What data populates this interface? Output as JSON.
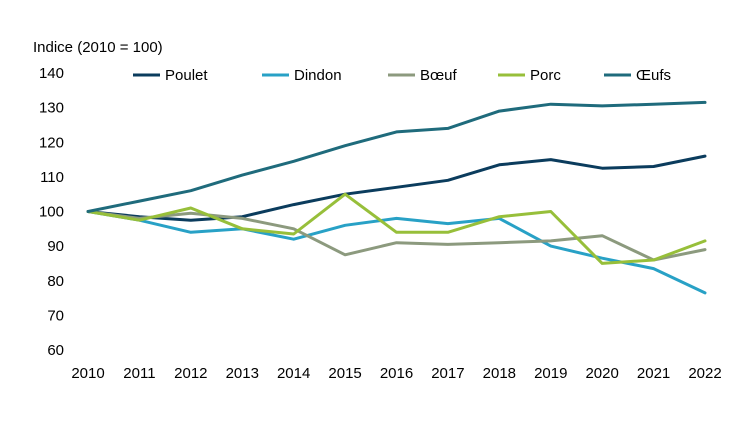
{
  "chart_data": {
    "type": "line",
    "title": "",
    "ylabel": "Indice (2010 = 100)",
    "xlabel": "",
    "x": [
      "2010",
      "2011",
      "2012",
      "2013",
      "2014",
      "2015",
      "2016",
      "2017",
      "2018",
      "2019",
      "2020",
      "2021",
      "2022"
    ],
    "ylim": [
      60,
      140
    ],
    "yticks": [
      60,
      70,
      80,
      90,
      100,
      110,
      120,
      130,
      140
    ],
    "grid": false,
    "legend": "top",
    "series": [
      {
        "name": "Poulet",
        "color": "#0b3c5d",
        "values": [
          100,
          98.5,
          97.5,
          98.5,
          102,
          105,
          107,
          109,
          113.5,
          115,
          112.5,
          113,
          116
        ]
      },
      {
        "name": "Dindon",
        "color": "#28a1c6",
        "values": [
          100,
          97.5,
          94,
          95,
          92,
          96,
          98,
          96.5,
          98,
          90,
          86.5,
          83.5,
          76.5
        ]
      },
      {
        "name": "Bœuf",
        "color": "#8c9a7e",
        "values": [
          100,
          98,
          99.5,
          98,
          95,
          87.5,
          91,
          90.5,
          91,
          91.5,
          93,
          86,
          89
        ]
      },
      {
        "name": "Porc",
        "color": "#97bf3a",
        "values": [
          100,
          97.5,
          101,
          95,
          93.5,
          105,
          94,
          94,
          98.5,
          100,
          85,
          86,
          91.5
        ]
      },
      {
        "name": "Œufs",
        "color": "#1f6b7c",
        "values": [
          100,
          103,
          106,
          110.5,
          114.5,
          119,
          123,
          124,
          129,
          131,
          130.5,
          131,
          131.5
        ]
      }
    ]
  }
}
